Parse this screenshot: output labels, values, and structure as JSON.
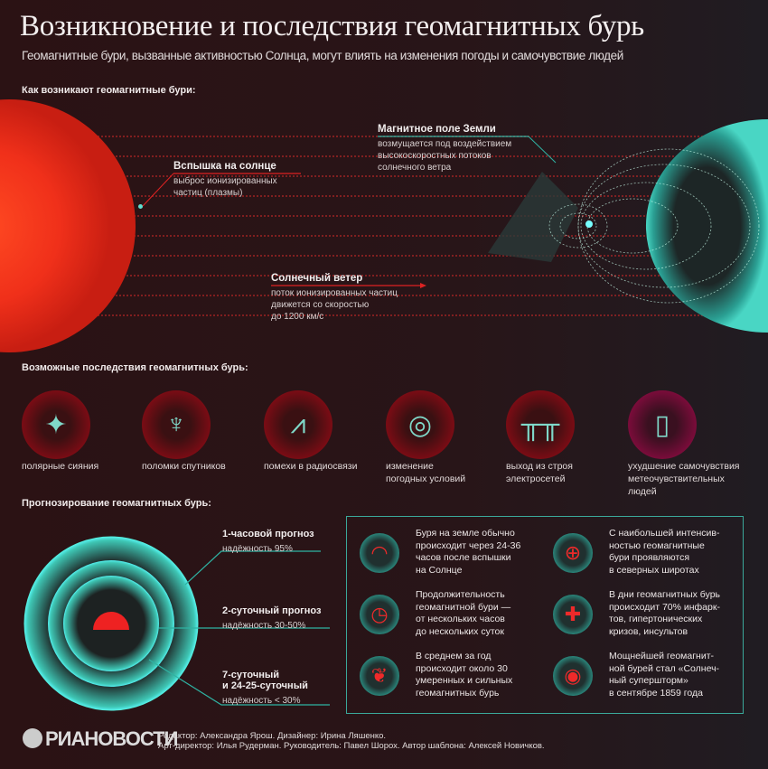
{
  "header": {
    "title": "Возникновение и последствия геомагнитных бурь",
    "subtitle": "Геомагнитные бури, вызванные активностью Солнца, могут влиять на изменения погоды и самочувствие людей"
  },
  "origin": {
    "heading": "Как возникают геомагнитные бури:",
    "flare": {
      "title": "Вспышка на солнце",
      "lines": [
        "выброс ионизированных",
        "частиц (плазмы)"
      ]
    },
    "field": {
      "title": "Магнитное поле Земли",
      "lines": [
        "возмущается под воздействием",
        "высокоскоростных потоков",
        "солнечного ветра"
      ]
    },
    "wind": {
      "title": "Солнечный ветер",
      "lines": [
        "поток ионизированных частиц",
        "движется со скоростью",
        "до 1200 км/с"
      ]
    }
  },
  "effects": {
    "heading": "Возможные последствия геомагнитных бурь:",
    "items": [
      {
        "icon": "aurora-icon",
        "lines": [
          "полярные сияния"
        ]
      },
      {
        "icon": "satellite-icon",
        "lines": [
          "поломки спутников"
        ]
      },
      {
        "icon": "radio-wave-icon",
        "lines": [
          "помехи в радиосвязи"
        ]
      },
      {
        "icon": "cyclone-icon",
        "lines": [
          "изменение",
          "погодных условий"
        ]
      },
      {
        "icon": "power-line-icon",
        "lines": [
          "выход из строя",
          "электросетей"
        ]
      },
      {
        "icon": "pill-icon",
        "lines": [
          "ухудшение самочувствия",
          "метеочувствительных",
          "людей"
        ]
      }
    ]
  },
  "forecast": {
    "heading": "Прогнозирование геомагнитных бурь:",
    "items": [
      {
        "title": [
          "1-часовой прогноз"
        ],
        "reliability": "надёжность 95%"
      },
      {
        "title": [
          "2-суточный прогноз"
        ],
        "reliability": "надёжность 30-50%"
      },
      {
        "title": [
          "7-суточный",
          "и 24-25-суточный"
        ],
        "reliability": "надёжность < 30%"
      }
    ]
  },
  "facts": [
    {
      "icon": "sun-flare-icon",
      "lines": [
        "Буря на земле обычно",
        "происходит через 24-36",
        "часов после вспышки",
        "на Солнце"
      ]
    },
    {
      "icon": "globe-icon",
      "lines": [
        "С наибольшей интенсив-",
        "ностью геомагнитные",
        "бури проявляются",
        "в северных широтах"
      ]
    },
    {
      "icon": "clock-icon",
      "lines": [
        "Продолжительность",
        "геомагнитной бури —",
        "от нескольких часов",
        "до нескольких суток"
      ]
    },
    {
      "icon": "medical-cross-icon",
      "lines": [
        "В дни геомагнитных бурь",
        "происходит 70% инфарк-",
        "тов, гипертонических",
        "кризов, инсультов"
      ]
    },
    {
      "icon": "flare-pair-icon",
      "lines": [
        "В среднем за год",
        "происходит около 30",
        "умеренных и сильных",
        "геомагнитных бурь"
      ]
    },
    {
      "icon": "storm-icon",
      "lines": [
        "Мощнейшей геомагнит-",
        "ной бурей стал «Солнеч-",
        "ный супершторм»",
        "в сентябре 1859 года"
      ]
    }
  ],
  "footer": {
    "logo": "РИАНОВОСТИ",
    "credits": [
      "Редактор: Александра Ярош. Дизайнер: Ирина Ляшенко.",
      "Арт-директор: Илья Рудерман. Руководитель: Павел Шорох. Автор шаблона: Алексей Новичков."
    ]
  },
  "colors": {
    "accent_red": "#e02a2a",
    "accent_teal": "#2fb3a3",
    "sun": "#ff3a1a"
  }
}
